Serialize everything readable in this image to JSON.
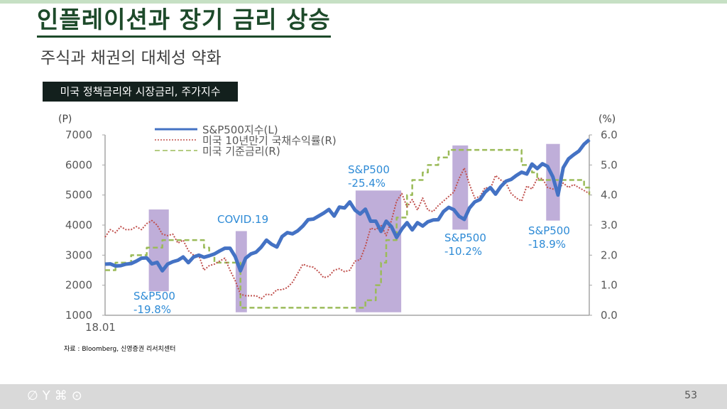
{
  "slide": {
    "title": "인플레이션과 장기 금리 상승",
    "subtitle": "주식과 채권의 대체성 약화",
    "chart_label": "미국 정책금리와 시장금리, 주가지수",
    "source": "자료 : Bloomberg, 신영증권 리서치센터",
    "page_number": "53",
    "footer_icons": [
      "leaf-icon",
      "sprout-icon",
      "clover-icon",
      "apple-icon"
    ]
  },
  "chart_data": {
    "type": "line",
    "title": "미국 정책금리와 시장금리, 주가지수",
    "x_start": "18.01",
    "x_tick_labels": [
      "18.01"
    ],
    "x_range": [
      2018.0,
      2025.75
    ],
    "x_step_months": 1,
    "left_axis": {
      "unit_label": "(P)",
      "range": [
        1000,
        7000
      ],
      "ticks": [
        "1000",
        "2000",
        "3000",
        "4000",
        "5000",
        "6000",
        "7000"
      ]
    },
    "right_axis": {
      "unit_label": "(%)",
      "range": [
        0,
        6
      ],
      "ticks": [
        "0.0",
        "1.0",
        "2.0",
        "3.0",
        "4.0",
        "5.0",
        "6.0"
      ]
    },
    "legend_position": "top-left",
    "grid": false,
    "colors": {
      "sp500": "#4472c4",
      "ust10y": "#c0504d",
      "fed": "#9bbb59",
      "shade": "#b4a0d2",
      "annotation": "#2e8bd6",
      "axis": "#a6a6a6",
      "tick": "#595959"
    },
    "series": [
      {
        "name": "S&P500지수(L)",
        "axis": "left",
        "style": "solid",
        "values": [
          2700,
          2710,
          2640,
          2650,
          2700,
          2720,
          2800,
          2900,
          2910,
          2710,
          2760,
          2480,
          2700,
          2780,
          2830,
          2940,
          2750,
          2940,
          3000,
          2930,
          2980,
          3040,
          3140,
          3230,
          3230,
          2950,
          2480,
          2900,
          3040,
          3100,
          3270,
          3500,
          3360,
          3270,
          3620,
          3750,
          3710,
          3810,
          3970,
          4180,
          4200,
          4300,
          4400,
          4520,
          4300,
          4600,
          4570,
          4770,
          4500,
          4370,
          4530,
          4130,
          4130,
          3790,
          4130,
          3950,
          3590,
          3870,
          4080,
          3840,
          4080,
          3970,
          4110,
          4170,
          4180,
          4450,
          4590,
          4510,
          4290,
          4190,
          4570,
          4770,
          4850,
          5100,
          5250,
          5030,
          5280,
          5460,
          5520,
          5650,
          5760,
          5700,
          6030,
          5880,
          6040,
          5950,
          5610,
          5000,
          5910,
          6200,
          6340,
          6460,
          6690,
          6840
        ]
      },
      {
        "name": "미국 10년만기 국채수익률(R)",
        "axis": "right",
        "style": "dotted",
        "values": [
          2.6,
          2.85,
          2.75,
          2.95,
          2.85,
          2.85,
          2.95,
          2.85,
          3.05,
          3.15,
          3.0,
          2.7,
          2.65,
          2.7,
          2.4,
          2.5,
          2.15,
          2.0,
          2.0,
          1.5,
          1.65,
          1.7,
          1.8,
          1.9,
          1.5,
          1.15,
          0.7,
          0.65,
          0.65,
          0.65,
          0.55,
          0.7,
          0.68,
          0.85,
          0.85,
          0.92,
          1.1,
          1.4,
          1.7,
          1.63,
          1.6,
          1.45,
          1.25,
          1.3,
          1.5,
          1.55,
          1.45,
          1.5,
          1.8,
          1.85,
          2.3,
          2.9,
          2.85,
          3.0,
          2.65,
          3.15,
          3.8,
          4.05,
          3.6,
          3.85,
          3.5,
          3.9,
          3.5,
          3.45,
          3.65,
          3.8,
          3.95,
          4.1,
          4.55,
          4.9,
          4.35,
          3.9,
          3.95,
          4.25,
          4.2,
          4.65,
          4.5,
          4.4,
          4.05,
          3.9,
          3.8,
          4.3,
          4.2,
          4.55,
          4.55,
          4.25,
          4.2,
          4.15,
          4.4,
          4.25,
          4.35,
          4.25,
          4.15,
          4.05
        ]
      },
      {
        "name": "미국 기준금리(R)",
        "axis": "right",
        "style": "dashed",
        "step": true,
        "values": [
          1.5,
          1.5,
          1.75,
          1.75,
          1.75,
          2.0,
          2.0,
          2.0,
          2.25,
          2.25,
          2.25,
          2.5,
          2.5,
          2.5,
          2.5,
          2.5,
          2.5,
          2.5,
          2.5,
          2.25,
          2.0,
          1.75,
          1.75,
          1.75,
          1.75,
          1.75,
          0.25,
          0.25,
          0.25,
          0.25,
          0.25,
          0.25,
          0.25,
          0.25,
          0.25,
          0.25,
          0.25,
          0.25,
          0.25,
          0.25,
          0.25,
          0.25,
          0.25,
          0.25,
          0.25,
          0.25,
          0.25,
          0.25,
          0.25,
          0.25,
          0.5,
          0.5,
          1.0,
          1.75,
          2.5,
          2.5,
          3.25,
          3.25,
          4.0,
          4.5,
          4.5,
          4.75,
          5.0,
          5.0,
          5.25,
          5.25,
          5.5,
          5.5,
          5.5,
          5.5,
          5.5,
          5.5,
          5.5,
          5.5,
          5.5,
          5.5,
          5.5,
          5.5,
          5.5,
          5.5,
          5.0,
          5.0,
          4.75,
          4.5,
          4.5,
          4.5,
          4.5,
          4.5,
          4.5,
          4.5,
          4.5,
          4.5,
          4.25,
          4.0
        ]
      }
    ],
    "shaded_periods": [
      {
        "from": 2018.7,
        "to": 2019.02,
        "low": 1800,
        "high": 4520,
        "label_lines": [
          "S&P500",
          "-19.8%"
        ]
      },
      {
        "from": 2020.09,
        "to": 2020.27,
        "low": 1100,
        "high": 3800,
        "label_lines": [
          "COVID.19"
        ]
      },
      {
        "from": 2022.01,
        "to": 2022.74,
        "low": 1100,
        "high": 5150,
        "label_lines": [
          "S&P500",
          "-25.4%"
        ]
      },
      {
        "from": 2023.56,
        "to": 2023.81,
        "low": 3850,
        "high": 6650,
        "label_lines": [
          "S&P500",
          "-10.2%"
        ]
      },
      {
        "from": 2025.06,
        "to": 2025.28,
        "low": 4150,
        "high": 6700,
        "label_lines": [
          "S&P500",
          "-18.9%"
        ]
      }
    ]
  }
}
